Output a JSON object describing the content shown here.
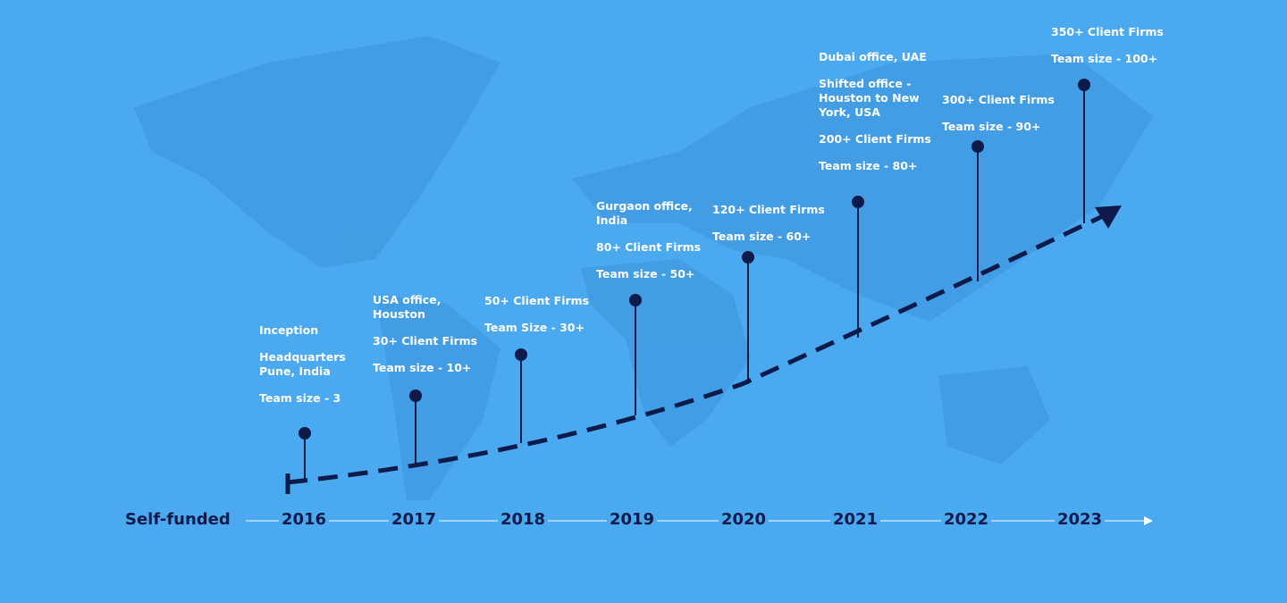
{
  "start_label": "Self-funded",
  "milestones": [
    {
      "year": "2016",
      "notes": [
        "Inception",
        "Headquarters Pune, India",
        "Team size - 3"
      ]
    },
    {
      "year": "2017",
      "notes": [
        "USA office, Houston",
        "30+ Client Firms",
        "Team size - 10+"
      ]
    },
    {
      "year": "2018",
      "notes": [
        "50+ Client Firms",
        "Team Size - 30+"
      ]
    },
    {
      "year": "2019",
      "notes": [
        "Gurgaon office, India",
        "80+ Client Firms",
        "Team size - 50+"
      ]
    },
    {
      "year": "2020",
      "notes": [
        "120+ Client Firms",
        "Team size - 60+"
      ]
    },
    {
      "year": "2021",
      "notes": [
        "Dubai office, UAE",
        "Shifted office - Houston to New York, USA",
        "200+ Client Firms",
        "Team size - 80+"
      ]
    },
    {
      "year": "2022",
      "notes": [
        "300+ Client Firms",
        "Team size - 90+"
      ]
    },
    {
      "year": "2023",
      "notes": [
        "350+ Client Firms",
        "Team size - 100+"
      ]
    }
  ]
}
